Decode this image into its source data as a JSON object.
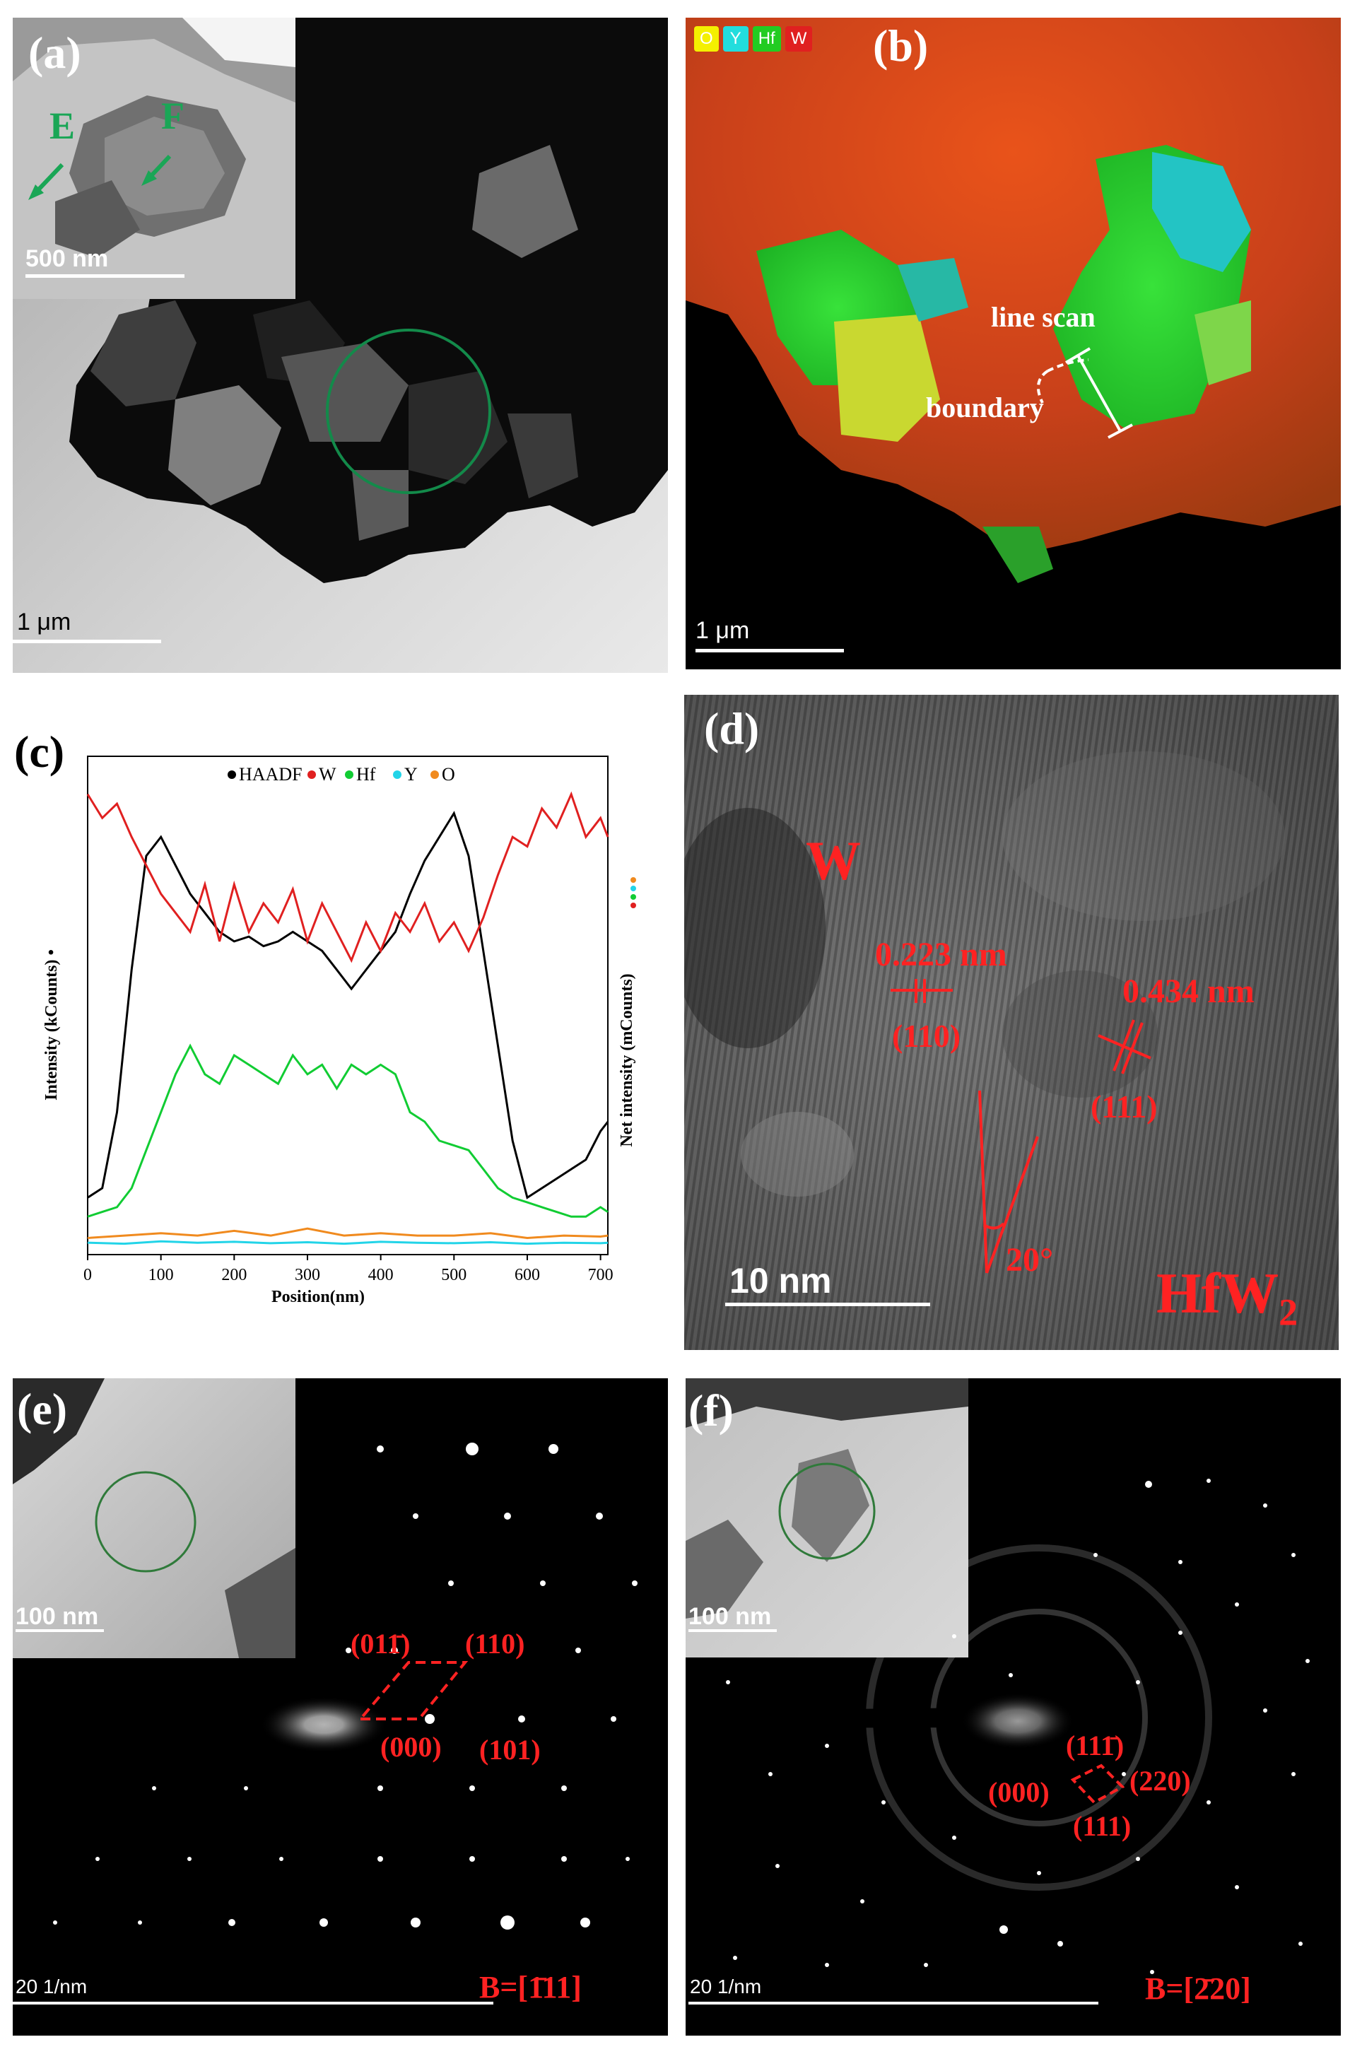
{
  "panels": {
    "a": {
      "label": "(a)",
      "scalebar": "1 μm",
      "inset_scalebar": "500 nm",
      "markers": [
        "E",
        "F"
      ]
    },
    "b": {
      "label": "(b)",
      "legend": [
        "O",
        "Y",
        "Hf",
        "W"
      ],
      "legend_colors": [
        "#f4f000",
        "#22dddd",
        "#22cc22",
        "#e02020"
      ],
      "annotation_line_scan": "line scan",
      "annotation_boundary": "boundary",
      "scalebar": "1 μm"
    },
    "c": {
      "label": "(c)"
    },
    "d": {
      "label": "(d)",
      "phase_w": "W",
      "spacing1": "0.223 nm",
      "plane1": "(110)",
      "spacing2": "0.434 nm",
      "plane2": "(111)",
      "angle": "20°",
      "phase_hfw2_main": "HfW",
      "phase_hfw2_sub": "2",
      "scalebar": "10 nm"
    },
    "e": {
      "label": "(e)",
      "inset_scalebar": "100 nm",
      "scalebar": "20 1/nm",
      "indices": [
        "(011̄)",
        "(110)",
        "(000)",
        "(101)"
      ],
      "zone_axis": "B=[1̄11]"
    },
    "f": {
      "label": "(f)",
      "inset_scalebar": "100 nm",
      "scalebar": "20 1/nm",
      "indices": [
        "(111̄)",
        "(000)",
        "(220)",
        "(111)"
      ],
      "zone_axis": "B=[2̄20]"
    }
  },
  "chart_data": {
    "type": "line",
    "title": "",
    "xlabel": "Position(nm)",
    "ylabel_left": "Intensity (kCounts) •",
    "ylabel_right": "Net intensity (mCounts)",
    "xlim": [
      0,
      710
    ],
    "xticks": [
      0,
      100,
      200,
      300,
      400,
      500,
      600,
      700
    ],
    "legend_position": "top",
    "series": [
      {
        "name": "HAADF",
        "color": "#000000",
        "x": [
          0,
          20,
          40,
          60,
          80,
          100,
          120,
          140,
          160,
          180,
          200,
          220,
          240,
          260,
          280,
          300,
          320,
          340,
          360,
          380,
          400,
          420,
          440,
          460,
          480,
          500,
          520,
          540,
          560,
          580,
          600,
          620,
          640,
          660,
          680,
          700,
          710
        ],
        "y": [
          12,
          14,
          30,
          60,
          84,
          88,
          82,
          76,
          72,
          68,
          66,
          67,
          65,
          66,
          68,
          66,
          64,
          60,
          56,
          60,
          64,
          68,
          76,
          83,
          88,
          93,
          84,
          64,
          44,
          24,
          12,
          14,
          16,
          18,
          20,
          26,
          28
        ]
      },
      {
        "name": "W",
        "color": "#e02020",
        "x": [
          0,
          20,
          40,
          60,
          80,
          100,
          120,
          140,
          160,
          180,
          200,
          220,
          240,
          260,
          280,
          300,
          320,
          340,
          360,
          380,
          400,
          420,
          440,
          460,
          480,
          500,
          520,
          540,
          560,
          580,
          600,
          620,
          640,
          660,
          680,
          700,
          710
        ],
        "y": [
          97,
          92,
          95,
          88,
          82,
          76,
          72,
          68,
          78,
          66,
          78,
          68,
          74,
          70,
          77,
          66,
          74,
          68,
          62,
          70,
          64,
          72,
          68,
          74,
          66,
          70,
          64,
          71,
          80,
          88,
          86,
          94,
          90,
          97,
          88,
          92,
          88
        ]
      },
      {
        "name": "Hf",
        "color": "#11cc33",
        "x": [
          0,
          20,
          40,
          60,
          80,
          100,
          120,
          140,
          160,
          180,
          200,
          220,
          240,
          260,
          280,
          300,
          320,
          340,
          360,
          380,
          400,
          420,
          440,
          460,
          480,
          500,
          520,
          540,
          560,
          580,
          600,
          620,
          640,
          660,
          680,
          700,
          710
        ],
        "y": [
          8,
          9,
          10,
          14,
          22,
          30,
          38,
          44,
          38,
          36,
          42,
          40,
          38,
          36,
          42,
          38,
          40,
          35,
          40,
          38,
          40,
          38,
          30,
          28,
          24,
          23,
          22,
          18,
          14,
          12,
          11,
          10,
          9,
          8,
          8,
          10,
          9
        ]
      },
      {
        "name": "Y",
        "color": "#22d4e8",
        "x": [
          0,
          50,
          100,
          150,
          200,
          250,
          300,
          350,
          400,
          450,
          500,
          550,
          600,
          650,
          700,
          710
        ],
        "y": [
          2.5,
          2.3,
          2.8,
          2.5,
          2.7,
          2.4,
          2.6,
          2.3,
          2.7,
          2.5,
          2.4,
          2.6,
          2.3,
          2.5,
          2.4,
          2.5
        ]
      },
      {
        "name": "O",
        "color": "#f08a1e",
        "x": [
          0,
          50,
          100,
          150,
          200,
          250,
          300,
          350,
          400,
          450,
          500,
          550,
          600,
          650,
          700,
          710
        ],
        "y": [
          3.5,
          4,
          4.5,
          4,
          5,
          4,
          5.5,
          4,
          4.5,
          4,
          4,
          4.5,
          3.5,
          4,
          3.8,
          4
        ]
      }
    ],
    "grid": false
  }
}
